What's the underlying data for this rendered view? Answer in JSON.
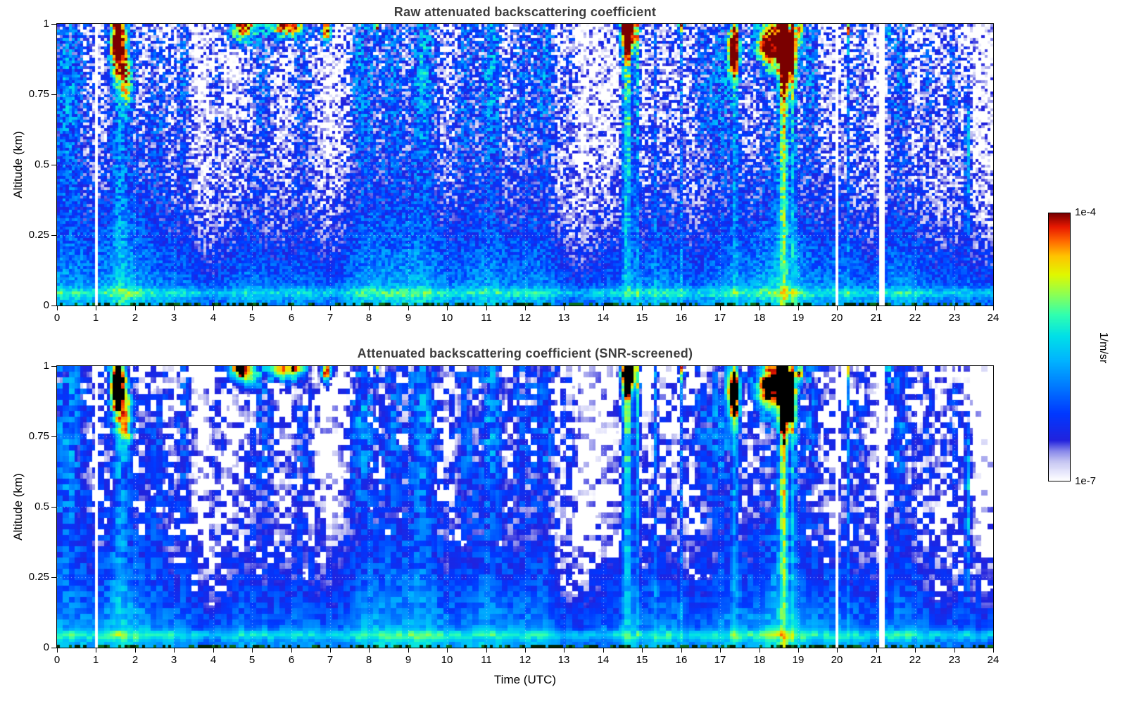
{
  "figure": {
    "background": "#ffffff",
    "title_color": "#3d3d3d"
  },
  "colorbar": {
    "max_label": "1e-4",
    "min_label": "1e-7",
    "units_label": "1/m/sr",
    "colormap_stops": [
      [
        0.0,
        "#ffffff"
      ],
      [
        0.03,
        "#e8e8fc"
      ],
      [
        0.07,
        "#c6c6f2"
      ],
      [
        0.11,
        "#8888ea"
      ],
      [
        0.15,
        "#2222dd"
      ],
      [
        0.25,
        "#0038ff"
      ],
      [
        0.35,
        "#0078ff"
      ],
      [
        0.45,
        "#00b4ff"
      ],
      [
        0.54,
        "#00e0e8"
      ],
      [
        0.62,
        "#30ffb0"
      ],
      [
        0.7,
        "#90ff50"
      ],
      [
        0.77,
        "#e0f800"
      ],
      [
        0.84,
        "#ffc400"
      ],
      [
        0.9,
        "#ff6400"
      ],
      [
        0.95,
        "#e81800"
      ],
      [
        1.0,
        "#7a0000"
      ]
    ]
  },
  "chart_data": [
    {
      "type": "heatmap",
      "title": "Raw attenuated backscattering coefficient",
      "xlabel": "",
      "ylabel": "Altitude (km)",
      "x_range": [
        0,
        24
      ],
      "y_range": [
        0,
        1
      ],
      "x_ticks": [
        "0",
        "1",
        "2",
        "3",
        "4",
        "5",
        "6",
        "7",
        "8",
        "9",
        "10",
        "11",
        "12",
        "13",
        "14",
        "15",
        "16",
        "17",
        "18",
        "19",
        "20",
        "21",
        "22",
        "23",
        "24"
      ],
      "y_ticks": [
        "0",
        "0.25",
        "0.5",
        "0.75",
        "1"
      ],
      "value_scale": "log10",
      "value_range_log10": [
        -7,
        -4
      ],
      "units": "1/m/sr",
      "grid": true,
      "screened": false,
      "note": "Raw signal: noisy blue/white speckle aloft, solid boundary-layer blue below ~0.5 km, cyan near-surface band at ~0.05 km."
    },
    {
      "type": "heatmap",
      "title": "Attenuated backscattering coefficient (SNR-screened)",
      "xlabel": "Time (UTC)",
      "ylabel": "Altitude (km)",
      "x_range": [
        0,
        24
      ],
      "y_range": [
        0,
        1
      ],
      "x_ticks": [
        "0",
        "1",
        "2",
        "3",
        "4",
        "5",
        "6",
        "7",
        "8",
        "9",
        "10",
        "11",
        "12",
        "13",
        "14",
        "15",
        "16",
        "17",
        "18",
        "19",
        "20",
        "21",
        "22",
        "23",
        "24"
      ],
      "y_ticks": [
        "0",
        "0.25",
        "0.5",
        "0.75",
        "1"
      ],
      "value_scale": "log10",
      "value_range_log10": [
        -7,
        -4
      ],
      "units": "1/m/sr",
      "grid": true,
      "screened": true,
      "note": "Same field as panel 1 with low-SNR pixels masked white and saturated cloud cores rendered black."
    }
  ],
  "field_model": {
    "description": "Time-height curtain of lidar attenuated backscatter, 0-24 UTC, 0-1 km. Cloud layers near 1 km at ~1.3-2, 4.4-7, 14.5-15 and 17-19.2 UTC; precipitation/virga columns at ~14.6, 14.9, 15.3, 18.6, 18.9, 20.3 UTC; elevated streak near 0.55 km at ~23.3 UTC; shallow boundary layer with a cyan near-surface band at ~0.05 km; white data gaps at ~1.0, ~20.0 and ~21.1 UTC.",
    "base_offset": -7.05,
    "base_amp": 1.35,
    "base_scale": 0.42,
    "tmod": [
      [
        0.18,
        0.7,
        1.2
      ],
      [
        0.12,
        1.9,
        4.1
      ],
      [
        0.08,
        4.1,
        0.7
      ]
    ],
    "surface_z": 0.045,
    "surface_w": 0.018,
    "surface_amp": 0.55,
    "snr_threshold": -6.8,
    "black_above": -4.06,
    "ground_colors": [
      "#002808",
      "#0a6e1e"
    ],
    "clouds": [
      {
        "t": 1.55,
        "z": 0.93,
        "wt": 0.2,
        "wz": 0.12,
        "a": 3.0
      },
      {
        "t": 1.8,
        "z": 0.8,
        "wt": 0.15,
        "wz": 0.1,
        "a": 1.6
      },
      {
        "t": 4.75,
        "z": 0.99,
        "wt": 0.35,
        "wz": 0.055,
        "a": 3.1
      },
      {
        "t": 5.9,
        "z": 0.99,
        "wt": 0.45,
        "wz": 0.04,
        "a": 2.95
      },
      {
        "t": 6.9,
        "z": 0.98,
        "wt": 0.13,
        "wz": 0.05,
        "a": 2.95
      },
      {
        "t": 8.2,
        "z": 1.0,
        "wt": 0.06,
        "wz": 0.03,
        "a": 2.5
      },
      {
        "t": 14.65,
        "z": 0.97,
        "wt": 0.22,
        "wz": 0.07,
        "a": 2.95
      },
      {
        "t": 16.0,
        "z": 1.0,
        "wt": 0.07,
        "wz": 0.04,
        "a": 2.4
      },
      {
        "t": 17.35,
        "z": 0.9,
        "wt": 0.16,
        "wz": 0.1,
        "a": 3.0
      },
      {
        "t": 18.3,
        "z": 0.93,
        "wt": 0.4,
        "wz": 0.09,
        "a": 3.1
      },
      {
        "t": 18.75,
        "z": 0.88,
        "wt": 0.2,
        "wz": 0.12,
        "a": 2.6
      },
      {
        "t": 19.05,
        "z": 0.98,
        "wt": 0.08,
        "wz": 0.05,
        "a": 2.3
      },
      {
        "t": 20.3,
        "z": 0.99,
        "wt": 0.05,
        "wz": 0.04,
        "a": 1.8
      },
      {
        "t": 21.3,
        "z": 0.97,
        "wt": 0.06,
        "wz": 0.05,
        "a": 1.4
      },
      {
        "t": 0.3,
        "z": 0.8,
        "wt": 0.45,
        "wz": 0.4,
        "a": 0.8
      },
      {
        "t": 2.6,
        "z": 0.7,
        "wt": 0.3,
        "wz": 0.35,
        "a": 0.5
      },
      {
        "t": 3.25,
        "z": 0.8,
        "wt": 0.18,
        "wz": 0.35,
        "a": 0.7
      },
      {
        "t": 4.1,
        "z": 0.75,
        "wt": 0.2,
        "wz": 0.3,
        "a": 0.6
      },
      {
        "t": 5.3,
        "z": 0.8,
        "wt": 0.3,
        "wz": 0.3,
        "a": 0.7
      },
      {
        "t": 6.3,
        "z": 0.75,
        "wt": 0.3,
        "wz": 0.3,
        "a": 0.6
      },
      {
        "t": 7.8,
        "z": 0.85,
        "wt": 0.3,
        "wz": 0.35,
        "a": 0.8
      },
      {
        "t": 8.6,
        "z": 0.8,
        "wt": 0.25,
        "wz": 0.3,
        "a": 0.6
      },
      {
        "t": 9.4,
        "z": 0.85,
        "wt": 0.3,
        "wz": 0.35,
        "a": 0.85
      },
      {
        "t": 10.45,
        "z": 0.8,
        "wt": 0.3,
        "wz": 0.35,
        "a": 0.7
      },
      {
        "t": 11.15,
        "z": 0.85,
        "wt": 0.25,
        "wz": 0.35,
        "a": 0.9
      },
      {
        "t": 11.9,
        "z": 0.8,
        "wt": 0.2,
        "wz": 0.3,
        "a": 0.6
      },
      {
        "t": 12.5,
        "z": 0.85,
        "wt": 0.3,
        "wz": 0.35,
        "a": 0.8
      },
      {
        "t": 13.15,
        "z": 0.8,
        "wt": 0.2,
        "wz": 0.3,
        "a": 0.65
      },
      {
        "t": 16.5,
        "z": 0.8,
        "wt": 0.25,
        "wz": 0.3,
        "a": 0.7
      },
      {
        "t": 17.0,
        "z": 0.8,
        "wt": 0.3,
        "wz": 0.3,
        "a": 0.8
      },
      {
        "t": 19.35,
        "z": 0.85,
        "wt": 0.2,
        "wz": 0.3,
        "a": 0.8
      },
      {
        "t": 20.6,
        "z": 0.8,
        "wt": 0.2,
        "wz": 0.3,
        "a": 0.6
      },
      {
        "t": 21.6,
        "z": 0.85,
        "wt": 0.25,
        "wz": 0.3,
        "a": 0.7
      },
      {
        "t": 22.35,
        "z": 0.8,
        "wt": 0.2,
        "wz": 0.3,
        "a": 0.6
      },
      {
        "t": 22.95,
        "z": 0.8,
        "wt": 0.25,
        "wz": 0.3,
        "a": 0.7
      }
    ],
    "columns": [
      {
        "t": 1.62,
        "w": 0.18,
        "a": 0.8
      },
      {
        "t": 14.62,
        "w": 0.13,
        "a": 2.3
      },
      {
        "t": 14.88,
        "w": 0.07,
        "a": 1.5
      },
      {
        "t": 15.32,
        "w": 0.05,
        "a": 0.8
      },
      {
        "t": 16.02,
        "w": 0.05,
        "a": 1.0
      },
      {
        "t": 17.38,
        "w": 0.09,
        "a": 1.1
      },
      {
        "t": 18.62,
        "w": 0.11,
        "a": 2.5
      },
      {
        "t": 18.88,
        "w": 0.06,
        "a": 1.3
      },
      {
        "t": 20.28,
        "w": 0.04,
        "a": 0.9
      },
      {
        "t": 23.35,
        "w": 0.07,
        "a": 1.3,
        "zc": 0.55,
        "zw": 0.28
      }
    ],
    "gaps": [
      [
        0.96,
        1.05
      ],
      [
        19.92,
        20.06
      ],
      [
        21.07,
        21.2
      ]
    ]
  }
}
